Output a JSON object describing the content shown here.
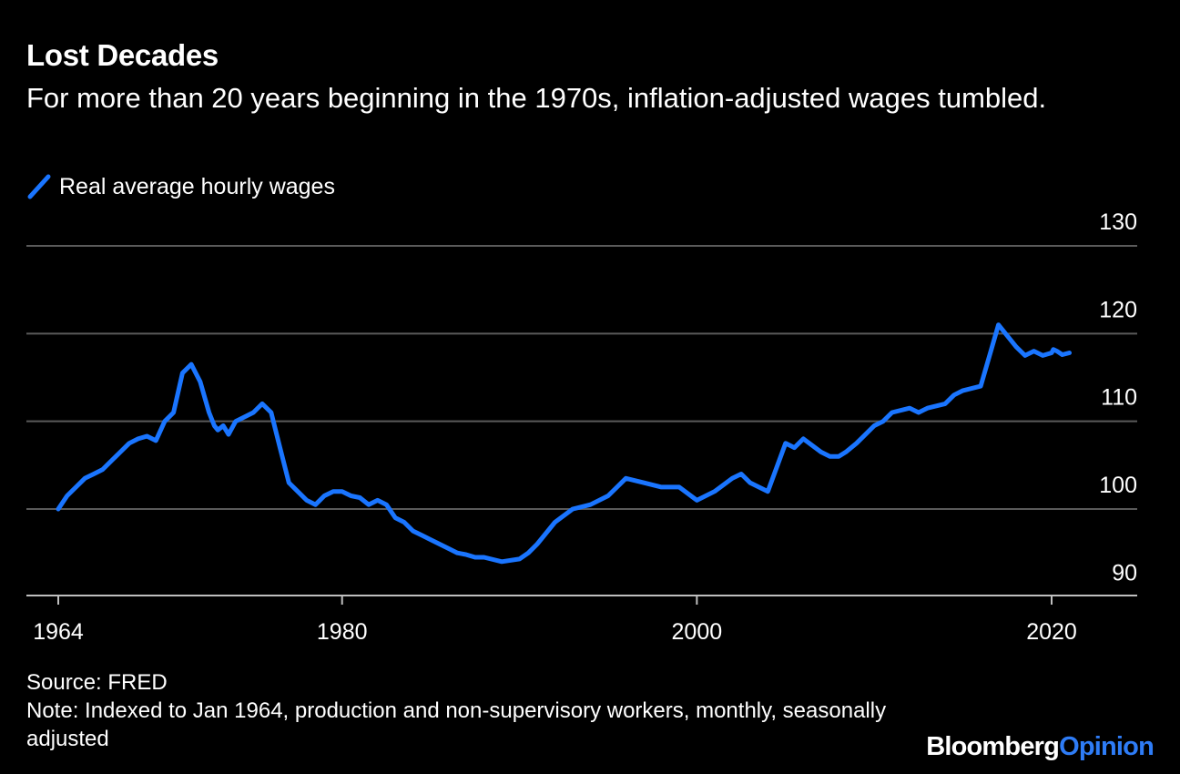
{
  "title": "Lost Decades",
  "subtitle": "For more than 20 years beginning in the 1970s, inflation-adjusted wages tumbled.",
  "source": "Source: FRED",
  "note": "Note: Indexed to Jan 1964, production and non-supervisory workers, monthly, seasonally adjusted",
  "brand": {
    "part1": "Bloomberg",
    "part2": "Opinion"
  },
  "colors": {
    "background": "#000000",
    "line": "#1a75ff",
    "grid": "#5a5a5a",
    "brand_accent": "#2e7cf6"
  },
  "chart_data": {
    "type": "line",
    "title": "Lost Decades",
    "subtitle": "For more than 20 years beginning in the 1970s, inflation-adjusted wages tumbled.",
    "xlabel": "",
    "ylabel": "",
    "x_ticks": [
      "1964",
      "1980",
      "2000",
      "2020"
    ],
    "y_ticks": [
      90,
      100,
      110,
      120,
      130
    ],
    "xlim": [
      1963.0,
      2024.5
    ],
    "ylim": [
      88,
      131
    ],
    "y_axis_position": "right",
    "grid": true,
    "legend_position": "top-left",
    "series": [
      {
        "name": "Real average hourly wages",
        "x": [
          1964.0,
          1964.5,
          1965.0,
          1965.5,
          1966.0,
          1966.5,
          1967.0,
          1967.5,
          1968.0,
          1968.5,
          1969.0,
          1969.5,
          1970.0,
          1970.5,
          1971.0,
          1971.5,
          1972.0,
          1972.5,
          1972.8,
          1973.0,
          1973.3,
          1973.6,
          1974.0,
          1974.5,
          1975.0,
          1975.5,
          1976.0,
          1976.5,
          1977.0,
          1977.5,
          1978.0,
          1978.5,
          1979.0,
          1979.5,
          1980.0,
          1980.5,
          1981.0,
          1981.5,
          1982.0,
          1982.5,
          1983.0,
          1983.5,
          1984.0,
          1984.5,
          1985.0,
          1986.0,
          1986.5,
          1987.0,
          1987.5,
          1988.0,
          1989.0,
          1990.0,
          1990.5,
          1991.0,
          1992.0,
          1993.0,
          1994.0,
          1995.0,
          1995.5,
          1996.0,
          1997.0,
          1998.0,
          1999.0,
          2000.0,
          2001.0,
          2002.0,
          2002.5,
          2003.0,
          2004.0,
          2005.0,
          2005.5,
          2006.0,
          2007.0,
          2007.5,
          2008.0,
          2008.4,
          2008.7,
          2009.0,
          2010.0,
          2010.5,
          2011.0,
          2012.0,
          2012.5,
          2013.0,
          2014.0,
          2014.5,
          2015.0,
          2016.0,
          2017.0,
          2018.0,
          2018.5,
          2019.0,
          2019.5,
          2020.0,
          2020.1,
          2020.3,
          2020.6,
          2021.0
        ],
        "values": [
          100.0,
          101.5,
          102.5,
          103.5,
          104.0,
          104.5,
          105.5,
          106.5,
          107.5,
          108.0,
          108.3,
          107.8,
          110.0,
          111.0,
          115.5,
          116.5,
          114.5,
          111.0,
          109.5,
          109.0,
          109.5,
          108.5,
          110.0,
          110.5,
          111.0,
          112.0,
          111.0,
          107.0,
          103.0,
          102.0,
          101.0,
          100.5,
          101.5,
          102.0,
          102.0,
          101.5,
          101.3,
          100.5,
          101.0,
          100.5,
          99.0,
          98.5,
          97.5,
          97.0,
          96.5,
          95.5,
          95.0,
          94.8,
          94.5,
          94.5,
          94.0,
          94.3,
          95.0,
          96.0,
          98.5,
          100.0,
          100.5,
          101.5,
          102.5,
          103.5,
          103.0,
          102.5,
          102.5,
          101.0,
          102.0,
          103.5,
          104.0,
          103.0,
          102.0,
          107.5,
          107.0,
          108.0,
          106.5,
          106.0,
          106.0,
          106.5,
          107.0,
          107.5,
          109.5,
          110.0,
          111.0,
          111.5,
          111.0,
          111.5,
          112.0,
          113.0,
          113.5,
          114.0,
          121.0,
          118.5,
          117.5,
          118.0,
          117.5,
          117.8,
          118.2,
          118.0,
          117.6,
          117.8
        ]
      }
    ]
  },
  "legend": {
    "label": "Real average hourly wages"
  }
}
